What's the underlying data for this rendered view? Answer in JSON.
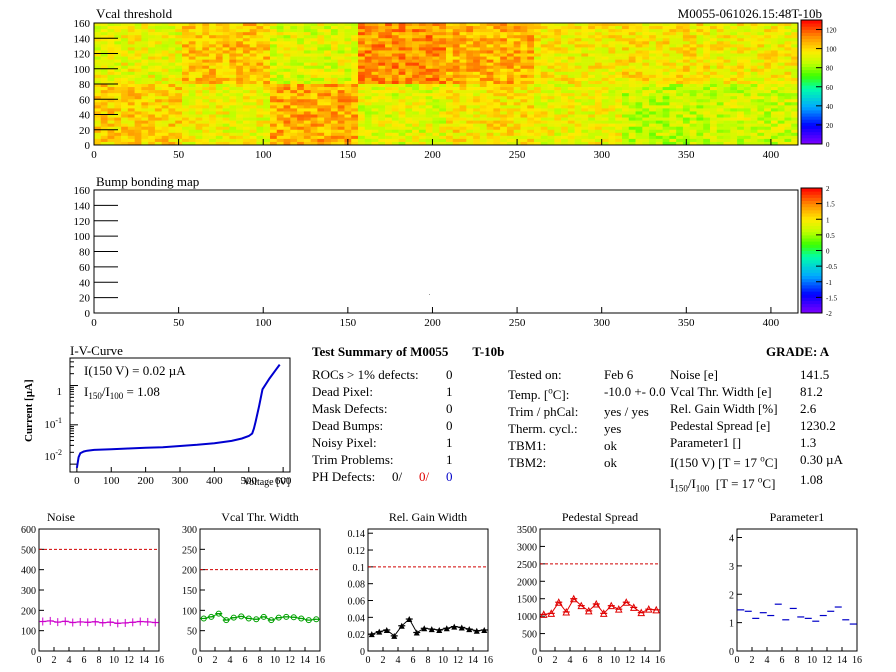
{
  "header": {
    "title_left": "Vcal threshold",
    "title_right": "M0055-061026.15:48T-10b"
  },
  "map1": {
    "title": "Vcal threshold",
    "yticks": [
      "0",
      "20",
      "40",
      "60",
      "80",
      "100",
      "120",
      "140",
      "160"
    ],
    "xticks": [
      "0",
      "50",
      "100",
      "150",
      "200",
      "250",
      "300",
      "350",
      "400"
    ],
    "zticks": [
      "0",
      "20",
      "40",
      "60",
      "80",
      "100",
      "120"
    ],
    "zrange": [
      0,
      130
    ]
  },
  "map2": {
    "title": "Bump bonding map",
    "yticks": [
      "0",
      "20",
      "40",
      "60",
      "80",
      "100",
      "120",
      "140",
      "160"
    ],
    "xticks": [
      "0",
      "50",
      "100",
      "150",
      "200",
      "250",
      "300",
      "350",
      "400"
    ],
    "zticks": [
      "-2",
      "-1.5",
      "-1",
      "-0.5",
      "0",
      "0.5",
      "1",
      "1.5",
      "2"
    ]
  },
  "iv": {
    "title": "I-V-Curve",
    "ylabel": "Current [µA]",
    "xlabel": "Voltage [V]",
    "line1": "I(150 V) = 0.02 µA",
    "line2_main": "I",
    "line2_sub1": "150",
    "line2_mid": "/I",
    "line2_sub2": "100",
    "line2_value": " =  1.08",
    "xticks": [
      "0",
      "100",
      "200",
      "300",
      "400",
      "500",
      "600"
    ],
    "ytick_1": "1",
    "ytick_m1": "10",
    "ytick_m1_exp": "-1",
    "ytick_m2": "10",
    "ytick_m2_exp": "-2",
    "chart_data": {
      "type": "line",
      "title": "I-V-Curve",
      "xlabel": "Voltage [V]",
      "ylabel": "Current [µA]",
      "xlim": [
        -20,
        620
      ],
      "ylim_log10": [
        -2.2,
        0.7
      ],
      "yscale": "log",
      "x": [
        0,
        5,
        10,
        20,
        30,
        50,
        100,
        150,
        200,
        250,
        300,
        350,
        400,
        450,
        480,
        500,
        510,
        515,
        520,
        530,
        540,
        560,
        580,
        590
      ],
      "y": [
        0.008,
        0.015,
        0.019,
        0.021,
        0.022,
        0.023,
        0.024,
        0.025,
        0.026,
        0.027,
        0.029,
        0.031,
        0.034,
        0.039,
        0.045,
        0.052,
        0.06,
        0.08,
        0.12,
        0.3,
        0.8,
        1.5,
        2.6,
        3.4
      ]
    }
  },
  "summary": {
    "heading_a": "Test Summary of M0055",
    "heading_b": "T-10b",
    "grade": "GRADE:  A",
    "defects": [
      {
        "label": "ROCs > 1% defects:",
        "value": "0"
      },
      {
        "label": "Dead Pixel:",
        "value": "1"
      },
      {
        "label": "Mask Defects:",
        "value": "0"
      },
      {
        "label": "Dead Bumps:",
        "value": "0"
      },
      {
        "label": "Noisy Pixel:",
        "value": "1"
      },
      {
        "label": "Trim Problems:",
        "value": "1"
      }
    ],
    "ph_label": "PH Defects:",
    "ph_v1": "0/",
    "ph_v2": "0/",
    "ph_v3": "0",
    "tested_on_label": "Tested on:",
    "tested_on_value": "Feb 6",
    "temp_label_a": "Temp. [",
    "temp_label_deg": "o",
    "temp_label_b": "C]:",
    "temp_value": "-10.0 +- 0.0",
    "trim_label": "Trim / phCal:",
    "trim_value": "yes / yes",
    "therm_label": "Therm. cycl.:",
    "therm_value": "yes",
    "tbm1_label": "TBM1:",
    "tbm1_value": "ok",
    "tbm2_label": "TBM2:",
    "tbm2_value": "ok",
    "params": [
      {
        "label": "Noise [e]",
        "value": "141.5"
      },
      {
        "label": "Vcal Thr. Width [e]",
        "value": "81.2"
      },
      {
        "label": "Rel. Gain Width [%]",
        "value": "2.6"
      },
      {
        "label": "Pedestal Spread [e]",
        "value": "1230.2"
      },
      {
        "label": "Parameter1 []",
        "value": "1.3"
      }
    ],
    "i150_label_a": "I(150 V) [T = 17 ",
    "i150_deg": "o",
    "i150_label_b": "C]",
    "i150_value": "0.30 µA",
    "ratio_I": "I",
    "ratio_sub1": "150",
    "ratio_mid": "/I",
    "ratio_sub2": "100",
    "ratio_label_b": "  [T = 17 ",
    "ratio_deg": "o",
    "ratio_label_c": "C]",
    "ratio_value": "1.08"
  },
  "chart_data": [
    {
      "type": "scatter",
      "title": "Noise",
      "color": "#cc00cc",
      "x": [
        0,
        1,
        2,
        3,
        4,
        5,
        6,
        7,
        8,
        9,
        10,
        11,
        12,
        13,
        14,
        15
      ],
      "values": [
        145,
        148,
        142,
        146,
        140,
        143,
        141,
        144,
        139,
        142,
        136,
        138,
        141,
        145,
        143,
        140
      ],
      "xlim": [
        0,
        16
      ],
      "ylim": [
        0,
        600
      ],
      "yticks": [
        "0",
        "100",
        "200",
        "300",
        "400",
        "500",
        "600"
      ],
      "xticks": [
        "0",
        "2",
        "4",
        "6",
        "8",
        "10",
        "12",
        "14",
        "16"
      ],
      "reference_line": 500
    },
    {
      "type": "scatter",
      "title": "Vcal Thr. Width",
      "color": "#00a000",
      "x": [
        0,
        1,
        2,
        3,
        4,
        5,
        6,
        7,
        8,
        9,
        10,
        11,
        12,
        13,
        14,
        15
      ],
      "values": [
        80,
        84,
        92,
        76,
        82,
        85,
        80,
        78,
        84,
        76,
        82,
        84,
        83,
        80,
        76,
        78
      ],
      "xlim": [
        0,
        16
      ],
      "ylim": [
        0,
        300
      ],
      "yticks": [
        "0",
        "50",
        "100",
        "150",
        "200",
        "250",
        "300"
      ],
      "xticks": [
        "0",
        "2",
        "4",
        "6",
        "8",
        "10",
        "12",
        "14",
        "16"
      ],
      "reference_line": 200
    },
    {
      "type": "scatter",
      "title": "Rel. Gain Width",
      "color": "#000000",
      "x": [
        0,
        1,
        2,
        3,
        4,
        5,
        6,
        7,
        8,
        9,
        10,
        11,
        12,
        13,
        14,
        15
      ],
      "values": [
        0.02,
        0.023,
        0.025,
        0.018,
        0.03,
        0.038,
        0.022,
        0.027,
        0.026,
        0.025,
        0.027,
        0.029,
        0.028,
        0.026,
        0.024,
        0.025
      ],
      "xlim": [
        0,
        16
      ],
      "ylim": [
        0,
        0.145
      ],
      "yticks": [
        "0",
        "0.02",
        "0.04",
        "0.06",
        "0.08",
        "0.1",
        "0.12",
        "0.14"
      ],
      "xticks": [
        "0",
        "2",
        "4",
        "6",
        "8",
        "10",
        "12",
        "14",
        "16"
      ],
      "reference_line": 0.1
    },
    {
      "type": "scatter",
      "title": "Pedestal Spread",
      "color": "#e00000",
      "x": [
        0,
        1,
        2,
        3,
        4,
        5,
        6,
        7,
        8,
        9,
        10,
        11,
        12,
        13,
        14,
        15
      ],
      "values": [
        1050,
        1080,
        1400,
        1120,
        1500,
        1300,
        1150,
        1350,
        1080,
        1300,
        1200,
        1400,
        1250,
        1100,
        1200,
        1180
      ],
      "xlim": [
        0,
        16
      ],
      "ylim": [
        0,
        3500
      ],
      "yticks": [
        "0",
        "500",
        "1000",
        "1500",
        "2000",
        "2500",
        "3000",
        "3500"
      ],
      "xticks": [
        "0",
        "2",
        "4",
        "6",
        "8",
        "10",
        "12",
        "14",
        "16"
      ],
      "reference_line": 2500
    },
    {
      "type": "scatter",
      "title": "Parameter1",
      "color": "#0000c8",
      "x": [
        0,
        1,
        2,
        3,
        4,
        5,
        6,
        7,
        8,
        9,
        10,
        11,
        12,
        13,
        14,
        15
      ],
      "values": [
        1.45,
        1.4,
        1.15,
        1.35,
        1.25,
        1.65,
        1.1,
        1.5,
        1.2,
        1.15,
        1.05,
        1.25,
        1.4,
        1.55,
        1.1,
        0.95
      ],
      "xlim": [
        0,
        16
      ],
      "ylim": [
        0,
        4.3
      ],
      "yticks": [
        "0",
        "1",
        "2",
        "3",
        "4"
      ],
      "xticks": [
        "0",
        "2",
        "4",
        "6",
        "8",
        "10",
        "12",
        "14",
        "16"
      ]
    }
  ]
}
